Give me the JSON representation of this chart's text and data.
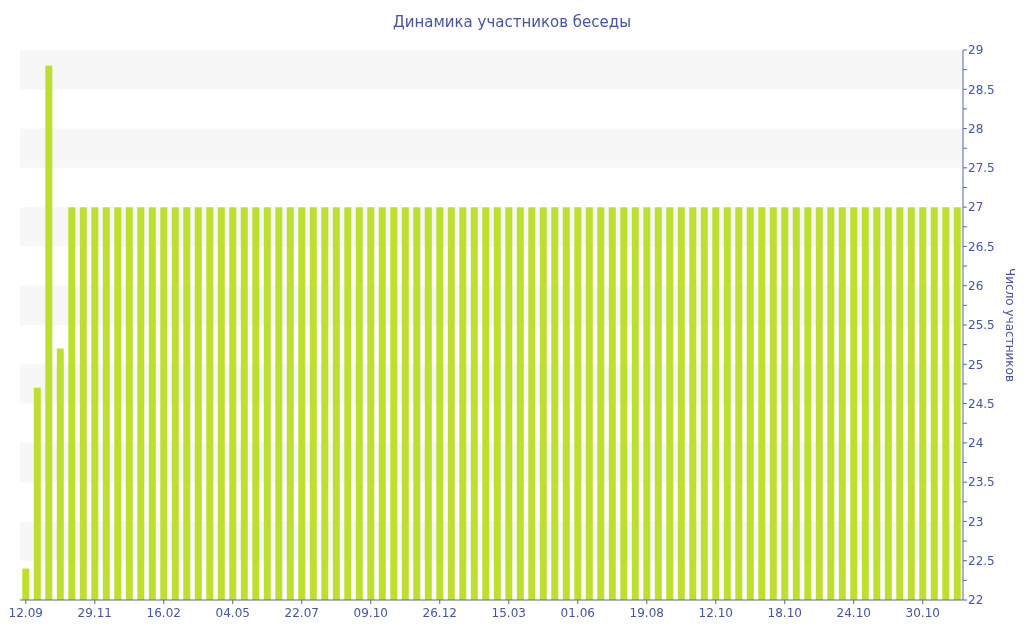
{
  "chart_data": {
    "type": "bar",
    "title": "Динамика участников беседы",
    "ylabel": "Число участников",
    "categories": [
      "12.09",
      null,
      null,
      null,
      null,
      null,
      "29.11",
      null,
      null,
      null,
      null,
      null,
      "16.02",
      null,
      null,
      null,
      null,
      null,
      "04.05",
      null,
      null,
      null,
      null,
      null,
      "22.07",
      null,
      null,
      null,
      null,
      null,
      "09.10",
      null,
      null,
      null,
      null,
      null,
      "26.12",
      null,
      null,
      null,
      null,
      null,
      "15.03",
      null,
      null,
      null,
      null,
      null,
      "01.06",
      null,
      null,
      null,
      null,
      null,
      "19.08",
      null,
      null,
      null,
      null,
      null,
      "12.10",
      null,
      null,
      null,
      null,
      null,
      "18.10",
      null,
      null,
      null,
      null,
      null,
      "24.10",
      null,
      null,
      null,
      null,
      null,
      "30.10",
      null,
      null,
      null
    ],
    "values": [
      22.4,
      24.7,
      28.8,
      25.2,
      27,
      27,
      27,
      27,
      27,
      27,
      27,
      27,
      27,
      27,
      27,
      27,
      27,
      27,
      27,
      27,
      27,
      27,
      27,
      27,
      27,
      27,
      27,
      27,
      27,
      27,
      27,
      27,
      27,
      27,
      27,
      27,
      27,
      27,
      27,
      27,
      27,
      27,
      27,
      27,
      27,
      27,
      27,
      27,
      27,
      27,
      27,
      27,
      27,
      27,
      27,
      27,
      27,
      27,
      27,
      27,
      27,
      27,
      27,
      27,
      27,
      27,
      27,
      27,
      27,
      27,
      27,
      27,
      27,
      27,
      27,
      27,
      27,
      27,
      27,
      27,
      27,
      27
    ],
    "color": "#bde030",
    "ylim": [
      22,
      29
    ],
    "yticks": [
      22,
      {
        "value": 22.25,
        "label": null
      },
      22.5,
      {
        "value": 22.75,
        "label": null
      },
      23,
      {
        "value": 23.25,
        "label": null
      },
      23.5,
      {
        "value": 23.75,
        "label": null
      },
      24,
      {
        "value": 24.25,
        "label": null
      },
      24.5,
      {
        "value": 24.75,
        "label": null
      },
      25,
      {
        "value": 25.25,
        "label": null
      },
      25.5,
      {
        "value": 25.75,
        "label": null
      },
      26,
      {
        "value": 26.25,
        "label": null
      },
      26.5,
      {
        "value": 26.75,
        "label": null
      },
      27,
      {
        "value": 27.25,
        "label": null
      },
      27.5,
      {
        "value": 27.75,
        "label": null
      },
      28,
      {
        "value": 28.25,
        "label": null
      },
      28.5,
      {
        "value": 28.75,
        "label": null
      },
      29
    ],
    "bands": [
      {
        "axis": "y",
        "from": 22.5,
        "to": 23,
        "color": "#f7f7f7"
      },
      {
        "axis": "y",
        "from": 23.5,
        "to": 24,
        "color": "#f7f7f7"
      },
      {
        "axis": "y",
        "from": 24.5,
        "to": 25,
        "color": "#f7f7f7"
      },
      {
        "axis": "y",
        "from": 25.5,
        "to": 26,
        "color": "#f7f7f7"
      },
      {
        "axis": "y",
        "from": 26.5,
        "to": 27,
        "color": "#f7f7f7"
      },
      {
        "axis": "y",
        "from": 27.5,
        "to": 28,
        "color": "#f7f7f7"
      },
      {
        "axis": "y",
        "from": 28.5,
        "to": 29,
        "color": "#f7f7f7"
      }
    ]
  }
}
